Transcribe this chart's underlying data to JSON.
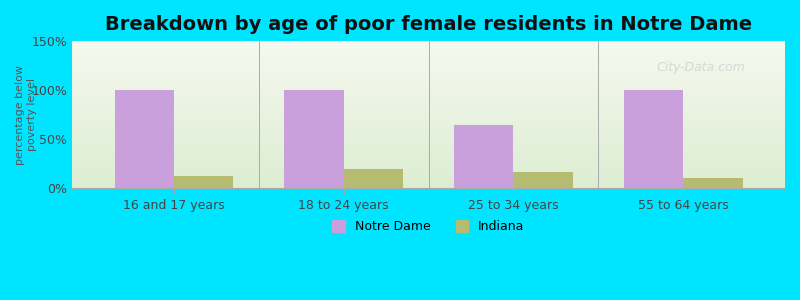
{
  "title": "Breakdown by age of poor female residents in Notre Dame",
  "categories": [
    "16 and 17 years",
    "18 to 24 years",
    "25 to 34 years",
    "55 to 64 years"
  ],
  "notre_dame_values": [
    100,
    100,
    65,
    100
  ],
  "indiana_values": [
    13,
    20,
    17,
    11
  ],
  "notre_dame_color": "#c9a0dc",
  "indiana_color": "#b5bc72",
  "ylabel": "percentage below\npoverty level",
  "ylim": [
    0,
    150
  ],
  "yticks": [
    0,
    50,
    100,
    150
  ],
  "ytick_labels": [
    "0%",
    "50%",
    "100%",
    "150%"
  ],
  "background_outer": "#00e5ff",
  "watermark": "City-Data.com",
  "bar_width": 0.35,
  "title_fontsize": 14
}
